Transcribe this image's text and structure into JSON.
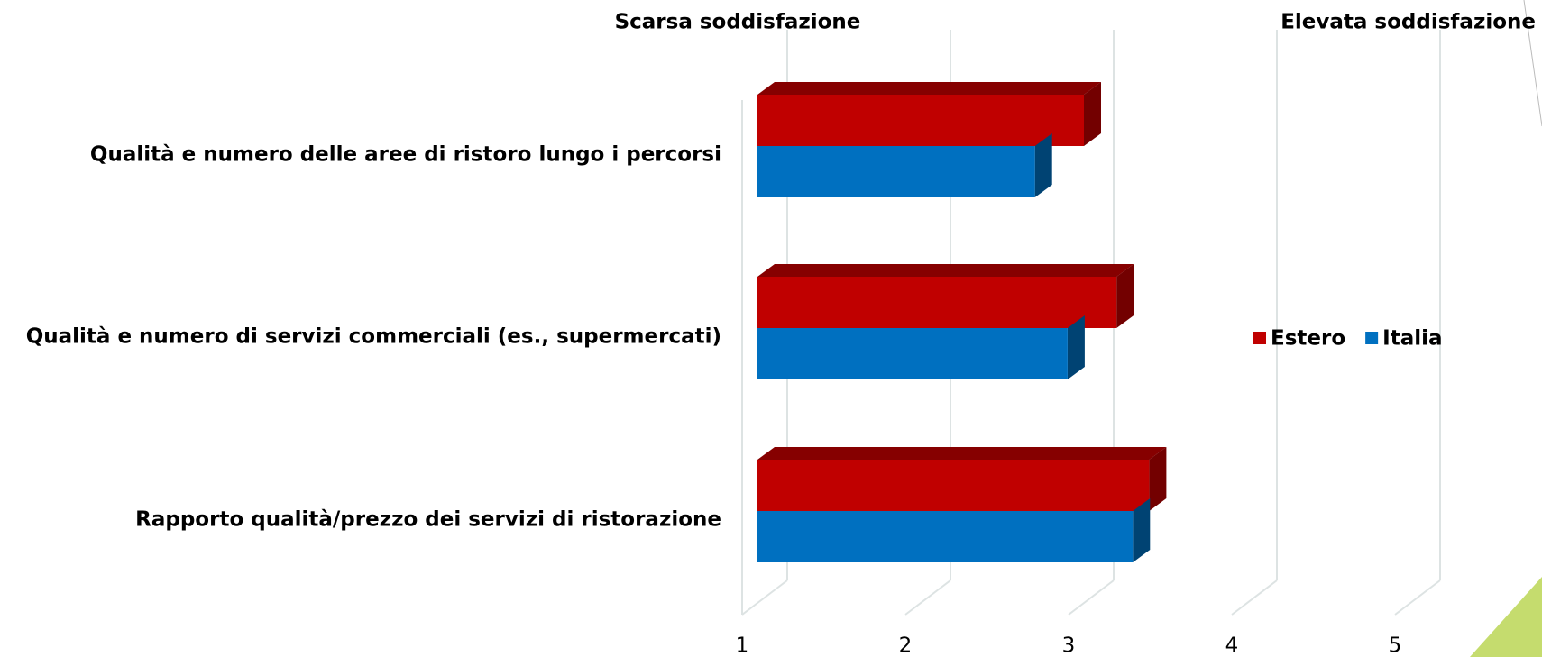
{
  "chart_data": {
    "type": "bar3d_horizontal",
    "annotations": [
      "Scarsa soddisfazione",
      "Elevata soddisfazione"
    ],
    "categories": [
      "Qualità e numero delle aree di ristoro lungo i percorsi",
      "Qualità e numero di servizi commerciali (es., supermercati)",
      "Rapporto qualità/prezzo dei servizi di ristorazione"
    ],
    "series": [
      {
        "name": "Estero",
        "color": "#c00000",
        "values": [
          3.0,
          3.2,
          3.4
        ]
      },
      {
        "name": "Italia",
        "color": "#0070c0",
        "values": [
          2.7,
          2.9,
          3.3
        ]
      }
    ],
    "xlim": [
      1,
      5
    ],
    "xticks": [
      1,
      2,
      3,
      4,
      5
    ],
    "grid": true,
    "legend": "right"
  }
}
